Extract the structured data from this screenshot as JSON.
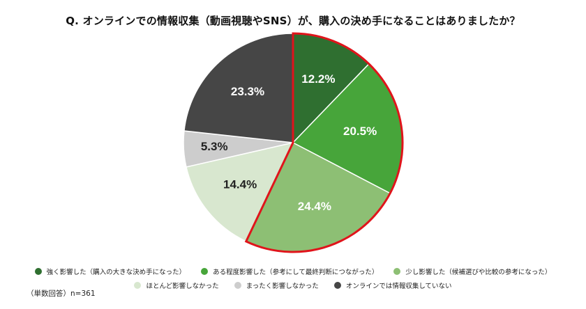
{
  "title": "Q. オンラインでの情報収集（動画視聴やSNS）が、購入の決め手になることはありましたか？",
  "note": "（単数回答）n=361",
  "chart_data": {
    "type": "pie",
    "start": "12 o'clock",
    "direction": "clockwise",
    "highlight": "first three slices outlined in red",
    "slices": [
      {
        "label": "強く影響した（購入の大きな決め手になった）",
        "value": 12.2,
        "display": "12.2%",
        "color": "#2f6f30",
        "text_color": "#ffffff",
        "highlighted": true
      },
      {
        "label": "ある程度影響した（参考にして最終判断につながった）",
        "value": 20.5,
        "display": "20.5%",
        "color": "#47a53a",
        "text_color": "#ffffff",
        "highlighted": true
      },
      {
        "label": "少し影響した（候補選びや比較の参考になった）",
        "value": 24.4,
        "display": "24.4%",
        "color": "#8dbf74",
        "text_color": "#ffffff",
        "highlighted": true
      },
      {
        "label": "ほとんど影響しなかった",
        "value": 14.4,
        "display": "14.4%",
        "color": "#d8e7cf",
        "text_color": "#222222",
        "highlighted": false
      },
      {
        "label": "まったく影響しなかった",
        "value": 5.3,
        "display": "5.3%",
        "color": "#cdcdcd",
        "text_color": "#222222",
        "highlighted": false
      },
      {
        "label": "オンラインでは情報収集していない",
        "value": 23.3,
        "display": "23.3%",
        "color": "#464646",
        "text_color": "#ffffff",
        "highlighted": false
      }
    ],
    "highlight_color": "#e0141b"
  }
}
